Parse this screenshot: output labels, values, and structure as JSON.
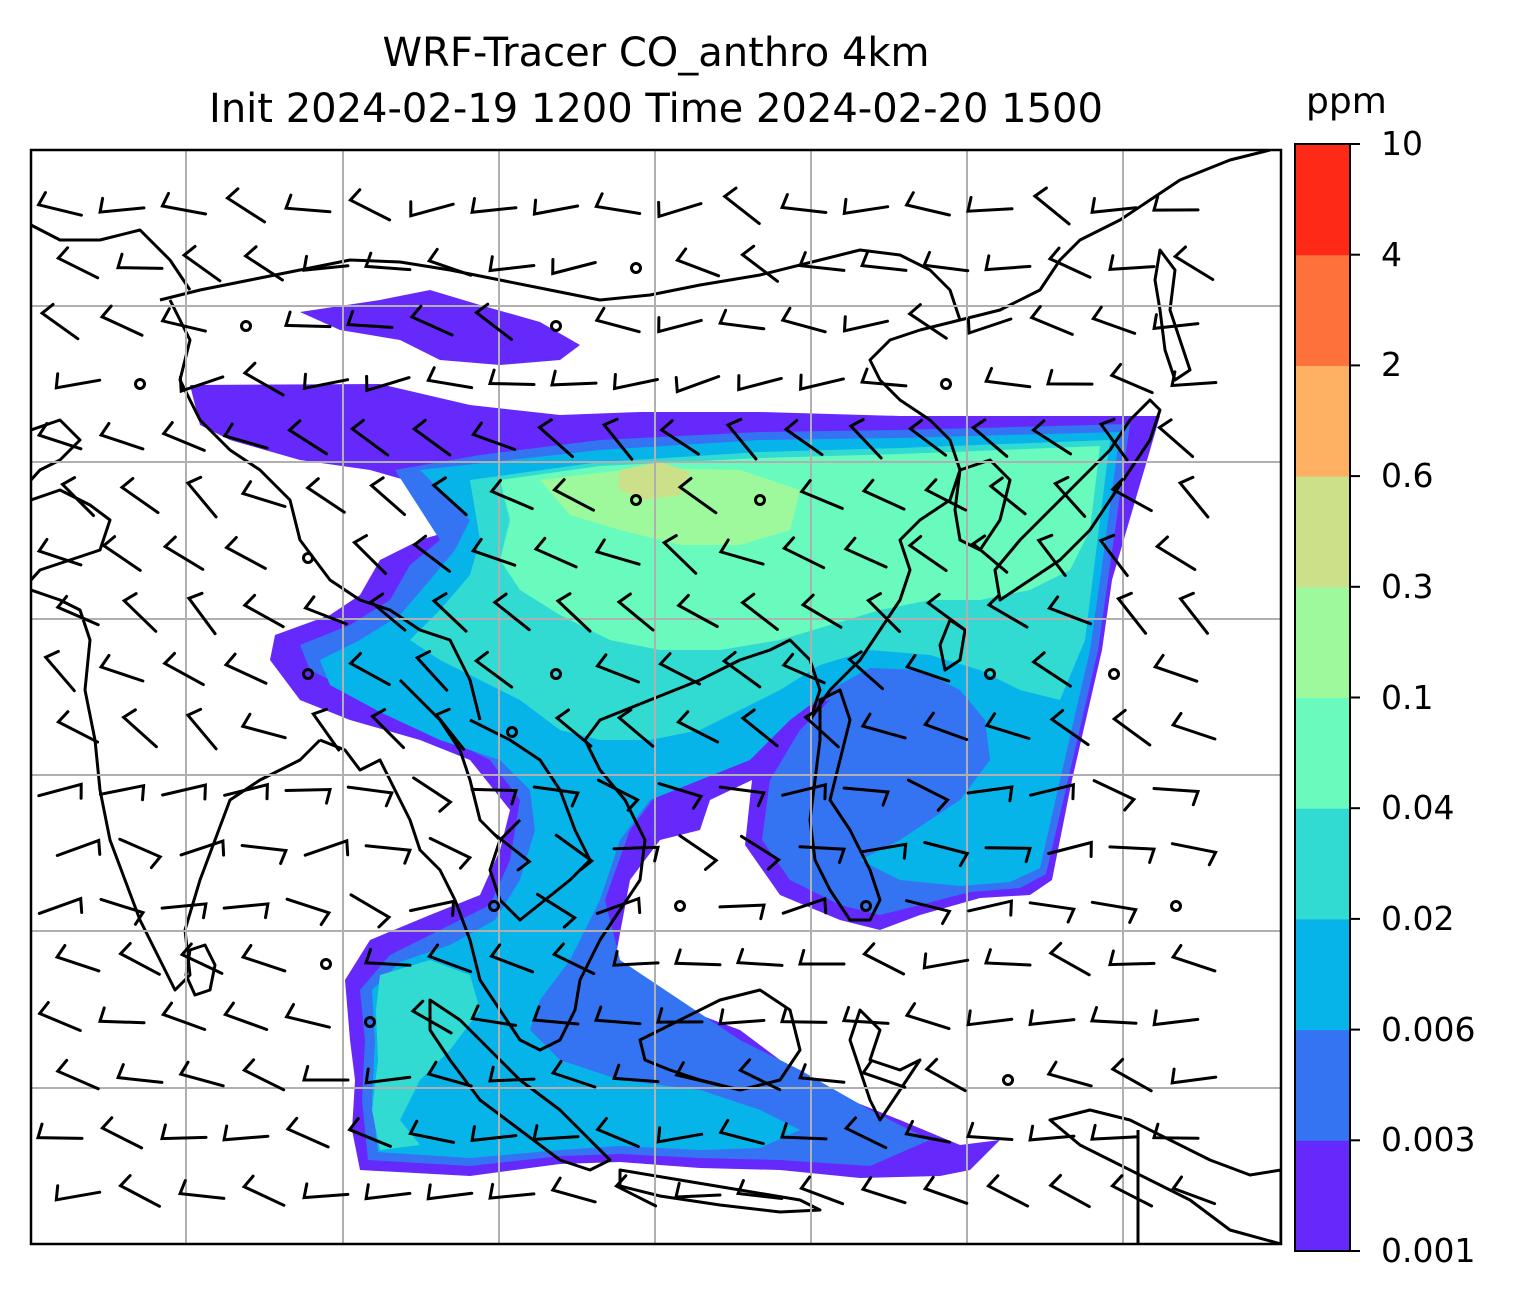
{
  "title": {
    "line1": "WRF-Tracer CO_anthro 4km",
    "line2": "Init 2024-02-19 1200 Time 2024-02-20 1500"
  },
  "colorbar": {
    "unit": "ppm",
    "levels": [
      "0.001",
      "0.003",
      "0.006",
      "0.02",
      "0.04",
      "0.1",
      "0.3",
      "0.6",
      "2",
      "4",
      "10"
    ],
    "colors": [
      "#6629fb",
      "#3474f3",
      "#07b4ea",
      "#31dbd2",
      "#69fbbd",
      "#9df99b",
      "#cce089",
      "#feb063",
      "#ff713a",
      "#fe2916"
    ]
  },
  "map": {
    "gridlines": true,
    "gridline_color": "#b0b0b0",
    "coastline_color": "#000000",
    "background": "#ffffff",
    "features": [
      "coastlines",
      "country-borders",
      "gridlines",
      "tracer-filled-contours",
      "wind-barbs"
    ],
    "tracer": "CO_anthro",
    "resolution": "4km"
  }
}
